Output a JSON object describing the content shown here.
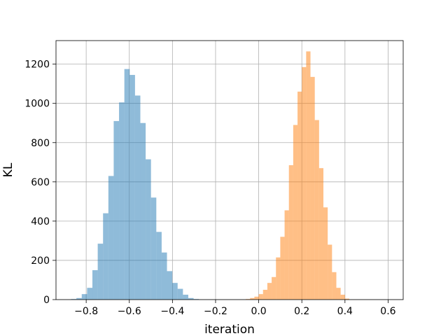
{
  "chart_data": {
    "type": "bar",
    "subtype": "histogram",
    "xlabel": "iteration",
    "ylabel": "KL",
    "xlim": [
      -0.94,
      0.67
    ],
    "ylim": [
      0,
      1320
    ],
    "grid": true,
    "xticks": [
      -0.8,
      -0.6,
      -0.4,
      -0.2,
      0.0,
      0.2,
      0.4,
      0.6
    ],
    "xtick_labels": [
      "−0.8",
      "−0.6",
      "−0.4",
      "−0.2",
      "0.0",
      "0.2",
      "0.4",
      "0.6"
    ],
    "yticks": [
      0,
      200,
      400,
      600,
      800,
      1000,
      1200
    ],
    "ytick_labels": [
      "0",
      "200",
      "400",
      "600",
      "800",
      "1000",
      "1200"
    ],
    "series": [
      {
        "color": "#1f77b4",
        "opacity": 0.5,
        "bin_start": -0.87,
        "bin_width": 0.0247,
        "counts": [
          3,
          8,
          28,
          60,
          150,
          285,
          440,
          630,
          910,
          1005,
          1175,
          1145,
          1040,
          900,
          715,
          520,
          345,
          240,
          145,
          85,
          55,
          25,
          8,
          3
        ]
      },
      {
        "color": "#ff7f0e",
        "opacity": 0.5,
        "bin_start": -0.06,
        "bin_width": 0.02,
        "counts": [
          3,
          8,
          15,
          28,
          50,
          85,
          115,
          215,
          320,
          455,
          685,
          890,
          1060,
          1185,
          1265,
          1135,
          915,
          670,
          470,
          280,
          140,
          60,
          25,
          5
        ]
      }
    ]
  }
}
